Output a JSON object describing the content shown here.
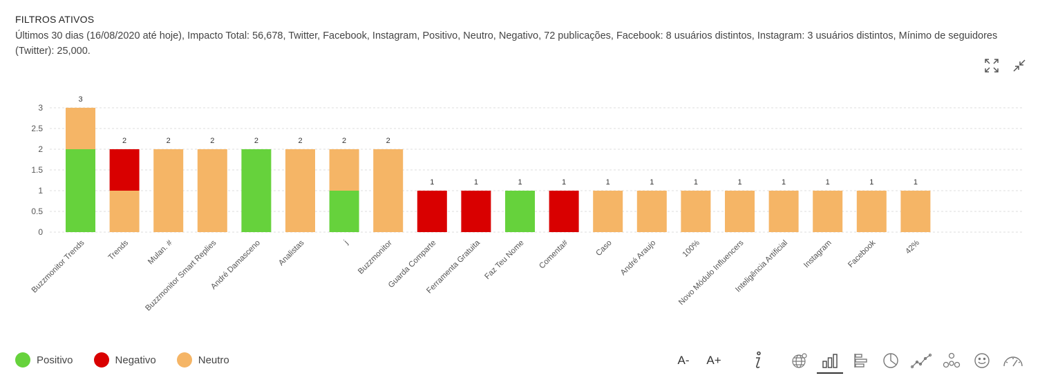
{
  "header": {
    "title": "FILTROS ATIVOS",
    "description": "Últimos 30 dias (16/08/2020 até hoje), Impacto Total: 56,678, Twitter, Facebook, Instagram, Positivo, Neutro, Negativo, 72 publicações, Facebook: 8 usuários distintos, Instagram: 3 usuários distintos, Mínimo de seguidores (Twitter): 25,000."
  },
  "colors": {
    "positivo": "#66d23c",
    "negativo": "#d90000",
    "neutro": "#f5b566"
  },
  "legend": [
    {
      "label": "Positivo",
      "color": "#66d23c"
    },
    {
      "label": "Negativo",
      "color": "#d90000"
    },
    {
      "label": "Neutro",
      "color": "#f5b566"
    }
  ],
  "toolbar": {
    "font_decrease": "A-",
    "font_increase": "A+"
  },
  "chart_data": {
    "type": "bar",
    "stacked": true,
    "title": "",
    "xlabel": "",
    "ylabel": "",
    "ylim": [
      0,
      3
    ],
    "yticks": [
      "0",
      "0.5",
      "1",
      "1.5",
      "2",
      "2.5",
      "3"
    ],
    "grid": true,
    "legend_position": "bottom-left",
    "categories": [
      "Buzzmonitor Trends",
      "Trends",
      "Mulan. #",
      "Buzzmonitor Smart Replies",
      "André Damasceno",
      "Analistas",
      "j",
      "Buzzmonitor",
      "Guarda Comparte",
      "Ferramenta Gratuita",
      "Faz Teu Nome",
      "Comenta#",
      "Caso",
      "André Araujo",
      "100%",
      "Novo Módulo Influencers",
      "Inteligência Artificial",
      "Instagram",
      "Facebook",
      "42%"
    ],
    "series": [
      {
        "name": "Positivo",
        "color": "#66d23c",
        "values": [
          2,
          0,
          0,
          0,
          2,
          0,
          1,
          0,
          0,
          0,
          1,
          0,
          0,
          0,
          0,
          0,
          0,
          0,
          0,
          0
        ]
      },
      {
        "name": "Neutro",
        "color": "#f5b566",
        "values": [
          1,
          1,
          2,
          2,
          0,
          2,
          1,
          2,
          0,
          0,
          0,
          0,
          1,
          1,
          1,
          1,
          1,
          1,
          1,
          1
        ]
      },
      {
        "name": "Negativo",
        "color": "#d90000",
        "values": [
          0,
          1,
          0,
          0,
          0,
          0,
          0,
          0,
          1,
          1,
          0,
          1,
          0,
          0,
          0,
          0,
          0,
          0,
          0,
          0
        ]
      }
    ],
    "totals": [
      "3",
      "2",
      "2",
      "2",
      "2",
      "2",
      "2",
      "2",
      "1",
      "1",
      "1",
      "1",
      "1",
      "1",
      "1",
      "1",
      "1",
      "1",
      "1",
      "1"
    ]
  }
}
